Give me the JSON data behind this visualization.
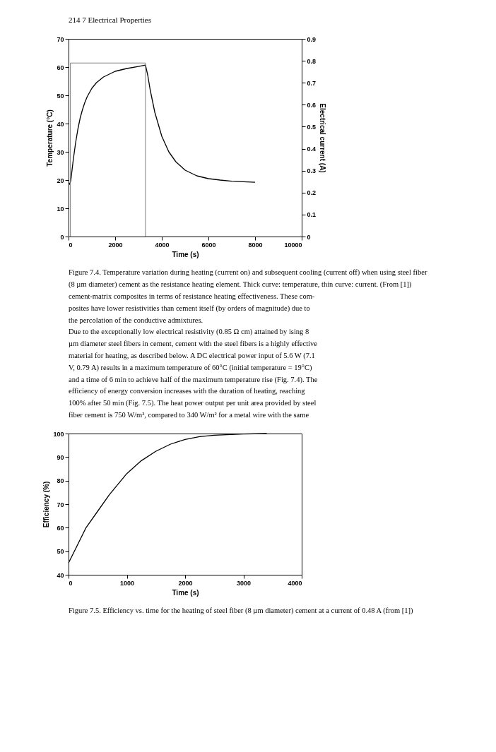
{
  "chart_data": [
    {
      "type": "line",
      "title": "214     7 Electrical Properties",
      "xlabel": "Time (s)",
      "ylabel": "Temperature (°C)",
      "y2label": "Electrical current (A)",
      "xlim": [
        0,
        10000
      ],
      "xticks": [
        0,
        2000,
        4000,
        6000,
        8000,
        10000
      ],
      "ylim": [
        0,
        70
      ],
      "yticks": [
        0,
        10,
        20,
        30,
        40,
        50,
        60,
        70
      ],
      "y2lim": [
        0,
        0.9
      ],
      "y2ticks": [
        0,
        0.1,
        0.2,
        0.3,
        0.4,
        0.5,
        0.6,
        0.7,
        0.8,
        0.9
      ],
      "grid": false,
      "legend": false,
      "series": [
        {
          "color": "#000000",
          "x": [
            0,
            50,
            100,
            200,
            300,
            400,
            500,
            600,
            700,
            800,
            1000,
            1200,
            1500,
            2000,
            2500,
            3000,
            3300,
            3400,
            3500,
            3700,
            4000,
            4300,
            4600,
            5000,
            5500,
            6000,
            6500,
            7000,
            7500,
            8000
          ],
          "values": [
            19,
            18.5,
            20,
            27,
            33,
            38,
            42,
            45,
            47.5,
            49.5,
            52.5,
            54.5,
            56.5,
            58.5,
            59.5,
            60.2,
            60.7,
            57,
            52,
            44,
            35.5,
            30,
            26.5,
            23.5,
            21.5,
            20.5,
            20,
            19.6,
            19.4,
            19.2
          ]
        },
        {
          "color": "#808080",
          "axis": "y2",
          "x": [
            0,
            80,
            80,
            3300,
            3300,
            8000
          ],
          "values": [
            0,
            0,
            0.79,
            0.79,
            0,
            0
          ]
        }
      ],
      "annotations": [
        "Figure 7.4. Temperature variation during heating (current on) and subsequent cooling (current off) when using steel fiber",
        "(8 µm diameter) cement as the resistance heating element. Thick curve: temperature, thin curve: current. (From [1])",
        "cement-matrix composites in terms of resistance heating effectiveness. These com-",
        "posites have lower resistivities than cement itself (by orders of magnitude) due to",
        "the percolation of the conductive admixtures.",
        "    Due to the exceptionally low electrical resistivity (0.85 Ω cm) attained by ising 8",
        "µm diameter steel fibers in cement, cement with the steel fibers is a highly effective",
        "material for heating, as described below. A DC electrical power input of 5.6 W (7.1",
        "V, 0.79 A) results in a maximum temperature of 60°C (initial temperature = 19°C)",
        "and a time of 6 min to achieve half of the maximum temperature rise (Fig. 7.4). The",
        "efficiency of energy conversion increases with the duration of heating, reaching",
        "100% after 50 min (Fig. 7.5). The heat power output per unit area provided by steel",
        "fiber cement is 750 W/m², compared to 340 W/m² for a metal wire with the same"
      ]
    },
    {
      "type": "line",
      "xlabel": "Time (s)",
      "ylabel": "Efficiency (%)",
      "xlim": [
        0,
        4000
      ],
      "xticks": [
        0,
        1000,
        2000,
        3000,
        4000
      ],
      "ylim": [
        40,
        100
      ],
      "yticks": [
        40,
        50,
        60,
        70,
        80,
        90,
        100
      ],
      "grid": false,
      "legend": false,
      "series": [
        {
          "color": "#000000",
          "x": [
            0,
            100,
            200,
            300,
            500,
            700,
            1000,
            1250,
            1500,
            1750,
            2000,
            2250,
            2500,
            3000,
            3400
          ],
          "values": [
            45,
            50,
            55,
            60,
            67,
            74,
            83,
            88.5,
            92.5,
            95.5,
            97.5,
            98.7,
            99.3,
            99.8,
            100
          ]
        }
      ],
      "annotations": [
        "Figure 7.5. Efficiency vs. time for the heating of steel fiber (8 µm diameter) cement at a current of 0.48 A (from [1])"
      ]
    }
  ]
}
